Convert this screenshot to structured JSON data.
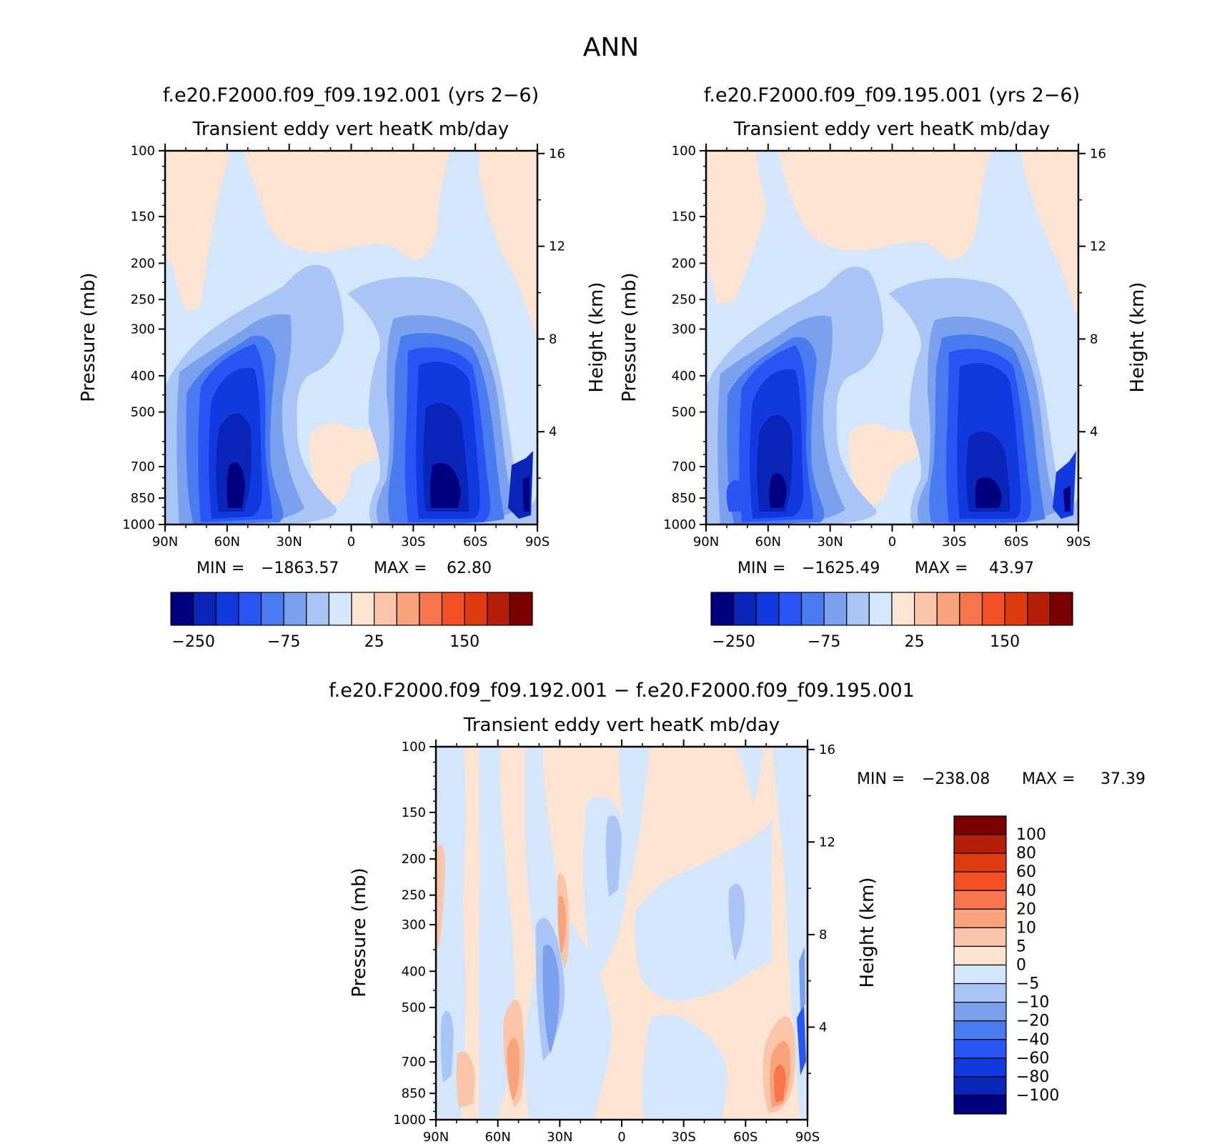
{
  "figure": {
    "season": "ANN"
  },
  "chart_data": [
    {
      "id": "case1",
      "type": "heatmap",
      "title": "f.e20.F2000.f09_f09.192.001 (yrs 2-6)",
      "subtitle": "Transient eddy vert heatK mb/day",
      "ylabel": "Pressure (mb)",
      "ylabel_right": "Height (km)",
      "x_ticks": [
        "90N",
        "60N",
        "30N",
        "0",
        "30S",
        "60S",
        "90S"
      ],
      "y_ticks": [
        "100",
        "150",
        "200",
        "250",
        "300",
        "400",
        "500",
        "700",
        "850",
        "1000"
      ],
      "y_values": [
        100,
        150,
        200,
        250,
        300,
        400,
        500,
        700,
        850,
        1000
      ],
      "height_ticks": [
        "16",
        "12",
        "8",
        "4"
      ],
      "height_values": [
        16,
        12,
        8,
        4
      ],
      "stats": {
        "min_label": "MIN =",
        "min": "-1863.57",
        "max_label": "MAX =",
        "max": "62.80"
      },
      "colorbar": {
        "labels": [
          "-250",
          "-75",
          "25",
          "150"
        ]
      }
    },
    {
      "id": "case2",
      "type": "heatmap",
      "title": "f.e20.F2000.f09_f09.195.001 (yrs 2-6)",
      "subtitle": "Transient eddy vert heatK mb/day",
      "ylabel": "Pressure (mb)",
      "ylabel_right": "Height (km)",
      "x_ticks": [
        "90N",
        "60N",
        "30N",
        "0",
        "30S",
        "60S",
        "90S"
      ],
      "y_ticks": [
        "100",
        "150",
        "200",
        "250",
        "300",
        "400",
        "500",
        "700",
        "850",
        "1000"
      ],
      "y_values": [
        100,
        150,
        200,
        250,
        300,
        400,
        500,
        700,
        850,
        1000
      ],
      "height_ticks": [
        "16",
        "12",
        "8",
        "4"
      ],
      "height_values": [
        16,
        12,
        8,
        4
      ],
      "stats": {
        "min_label": "MIN =",
        "min": "-1625.49",
        "max_label": "MAX =",
        "max": "43.97"
      },
      "colorbar": {
        "labels": [
          "-250",
          "-75",
          "25",
          "150"
        ]
      }
    },
    {
      "id": "diff",
      "type": "heatmap",
      "title": "f.e20.F2000.f09_f09.192.001 - f.e20.F2000.f09_f09.195.001",
      "subtitle": "Transient eddy vert heatK mb/day",
      "ylabel": "Pressure (mb)",
      "ylabel_right": "Height (km)",
      "x_ticks": [
        "90N",
        "60N",
        "30N",
        "0",
        "30S",
        "60S",
        "90S"
      ],
      "y_ticks": [
        "100",
        "150",
        "200",
        "250",
        "300",
        "400",
        "500",
        "700",
        "850",
        "1000"
      ],
      "y_values": [
        100,
        150,
        200,
        250,
        300,
        400,
        500,
        700,
        850,
        1000
      ],
      "height_ticks": [
        "16",
        "12",
        "8",
        "4"
      ],
      "height_values": [
        16,
        12,
        8,
        4
      ],
      "stats": {
        "min_label": "MIN =",
        "min": "-238.08",
        "max_label": "MAX =",
        "max": "37.39"
      },
      "colorbar": {
        "labels": [
          "100",
          "80",
          "60",
          "40",
          "20",
          "10",
          "5",
          "0",
          "-5",
          "-10",
          "-20",
          "-40",
          "-60",
          "-80",
          "-100"
        ]
      }
    }
  ],
  "colors": {
    "abs_scale": [
      "#000080",
      "#0a26b8",
      "#1238e0",
      "#2a55f5",
      "#4a7bf0",
      "#7aa0ee",
      "#a9c5f6",
      "#d4e6fb",
      "#fde4d2",
      "#fbc5aa",
      "#f9a37d",
      "#f7744c",
      "#f45026",
      "#e03a10",
      "#b51e08",
      "#7a0000"
    ],
    "diff_scale": [
      "#7a0000",
      "#b51e08",
      "#e03a10",
      "#f45026",
      "#f7744c",
      "#f9a37d",
      "#fbc5aa",
      "#fde4d2",
      "#d4e6fb",
      "#a9c5f6",
      "#7aa0ee",
      "#4a7bf0",
      "#2a55f5",
      "#1238e0",
      "#0a26b8",
      "#000080"
    ]
  }
}
